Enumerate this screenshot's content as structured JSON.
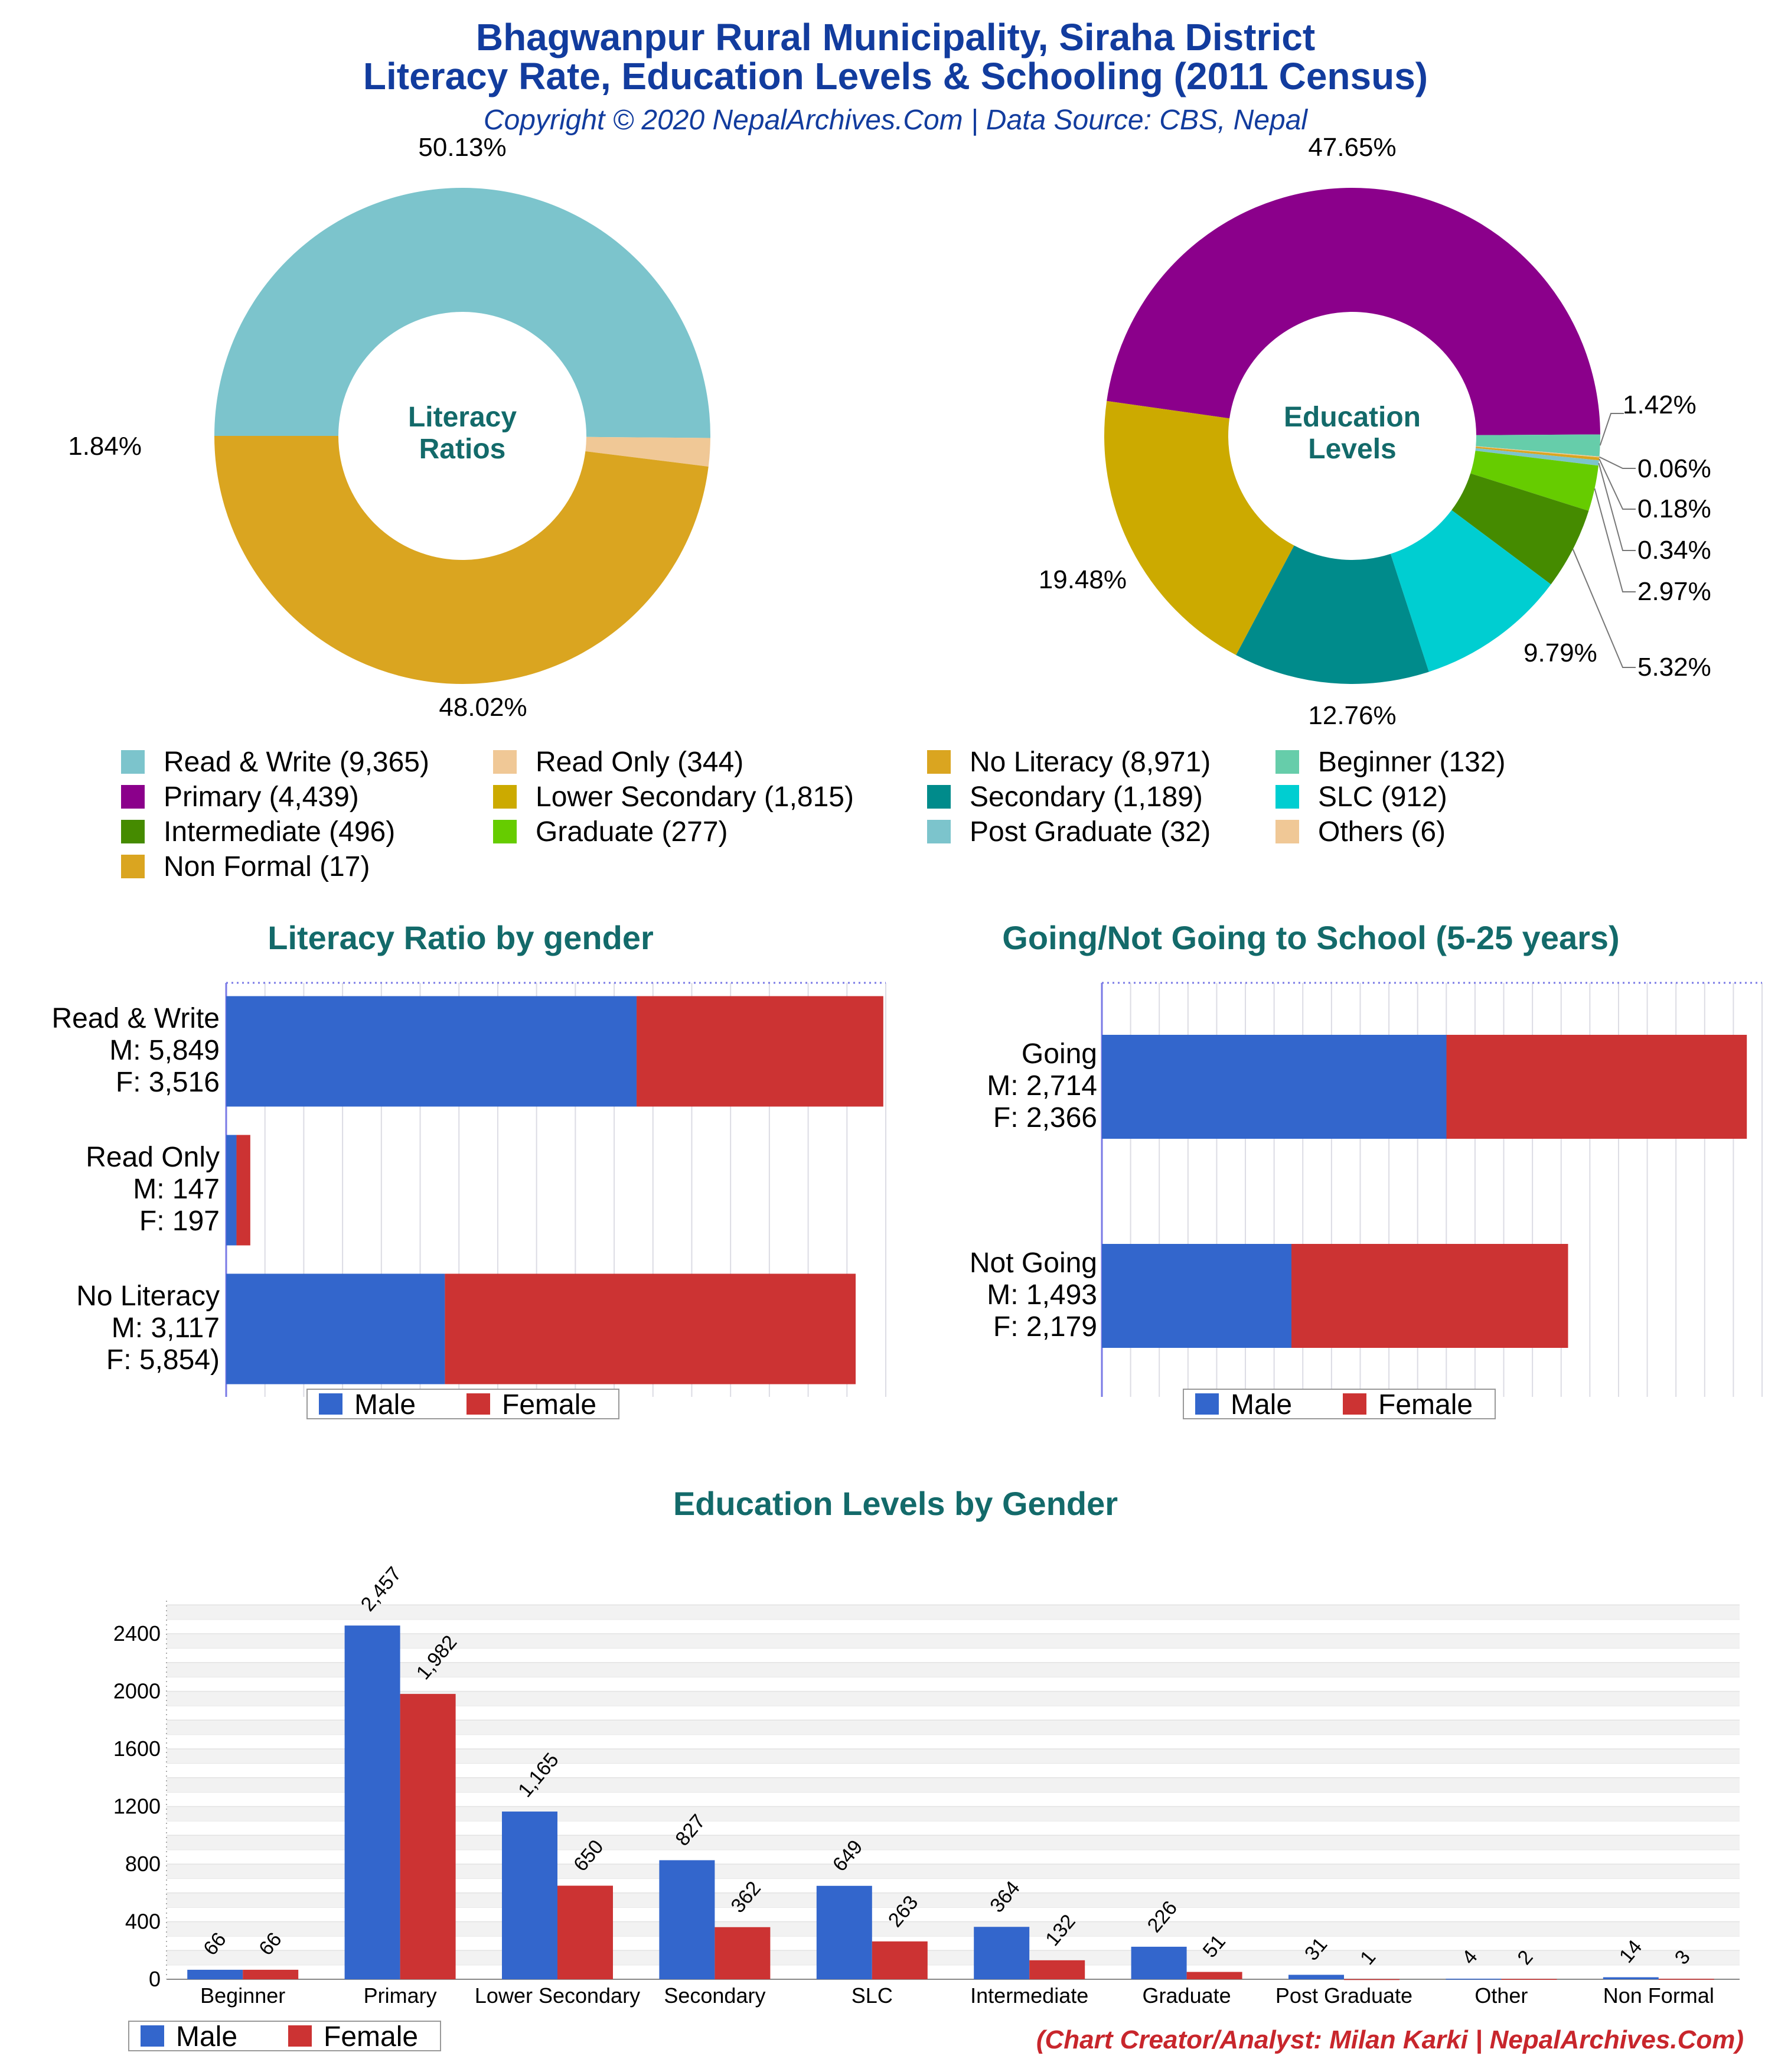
{
  "header": {
    "title_line1": "Bhagwanpur Rural Municipality, Siraha District",
    "title_line2": "Literacy Rate, Education Levels & Schooling (2011 Census)",
    "subtitle": "Copyright © 2020 NepalArchives.Com | Data Source: CBS, Nepal"
  },
  "colors": {
    "male": "#3366cc",
    "female": "#cc3333",
    "title": "#123c9e",
    "section": "#136a6a",
    "credit": "#c8262c"
  },
  "chart_data": [
    {
      "type": "pie",
      "center_label": [
        "Literacy",
        "Ratios"
      ],
      "slices": [
        {
          "label": "Read & Write",
          "value": 9365,
          "percent": "50.13%",
          "color": "#7cc4cc"
        },
        {
          "label": "Read Only",
          "value": 344,
          "percent": "1.84%",
          "color": "#f0c896"
        },
        {
          "label": "No Literacy",
          "value": 8971,
          "percent": "48.02%",
          "color": "#daa520"
        }
      ]
    },
    {
      "type": "pie",
      "center_label": [
        "Education",
        "Levels"
      ],
      "slices": [
        {
          "label": "Primary",
          "value": 4439,
          "percent": "47.65%",
          "color": "#8b008b"
        },
        {
          "label": "Beginner",
          "value": 132,
          "percent": "1.42%",
          "color": "#66cdaa"
        },
        {
          "label": "Others",
          "value": 6,
          "percent": "0.06%",
          "color": "#f0c896"
        },
        {
          "label": "Non Formal",
          "value": 17,
          "percent": "0.18%",
          "color": "#daa520"
        },
        {
          "label": "Post Graduate",
          "value": 32,
          "percent": "0.34%",
          "color": "#7cc4cc"
        },
        {
          "label": "Graduate",
          "value": 277,
          "percent": "2.97%",
          "color": "#66cc00"
        },
        {
          "label": "Intermediate",
          "value": 496,
          "percent": "5.32%",
          "color": "#458b00"
        },
        {
          "label": "SLC",
          "value": 912,
          "percent": "9.79%",
          "color": "#00ced1"
        },
        {
          "label": "Secondary",
          "value": 1189,
          "percent": "12.76%",
          "color": "#008b8b"
        },
        {
          "label": "Lower Secondary",
          "value": 1815,
          "percent": "19.48%",
          "color": "#ccaa00"
        }
      ]
    },
    {
      "type": "bar",
      "orientation": "horizontal-stacked",
      "title": "Literacy Ratio by gender",
      "categories": [
        {
          "name": "Read & Write",
          "line2": "M: 5,849",
          "line3": "F: 3,516"
        },
        {
          "name": "Read Only",
          "line2": "M: 147",
          "line3": "F: 197"
        },
        {
          "name": "No Literacy",
          "line2": "M: 3,117",
          "line3": "F: 5,854)"
        }
      ],
      "series": [
        {
          "name": "Male",
          "values": [
            5849,
            147,
            3117
          ]
        },
        {
          "name": "Female",
          "values": [
            3516,
            197,
            5854
          ]
        }
      ],
      "xlim": [
        0,
        9400
      ]
    },
    {
      "type": "bar",
      "orientation": "horizontal-stacked",
      "title": "Going/Not Going to School (5-25 years)",
      "categories": [
        {
          "name": "Going",
          "line2": "M: 2,714",
          "line3": "F: 2,366"
        },
        {
          "name": "Not Going",
          "line2": "M: 1,493",
          "line3": "F: 2,179"
        }
      ],
      "series": [
        {
          "name": "Male",
          "values": [
            2714,
            1493
          ]
        },
        {
          "name": "Female",
          "values": [
            2366,
            2179
          ]
        }
      ],
      "xlim": [
        0,
        5200
      ]
    },
    {
      "type": "bar",
      "title": "Education Levels by Gender",
      "categories": [
        "Beginner",
        "Primary",
        "Lower Secondary",
        "Secondary",
        "SLC",
        "Intermediate",
        "Graduate",
        "Post Graduate",
        "Other",
        "Non Formal"
      ],
      "series": [
        {
          "name": "Male",
          "values": [
            66,
            2457,
            1165,
            827,
            649,
            364,
            226,
            31,
            4,
            14
          ],
          "labels": [
            "66",
            "2,457",
            "1,165",
            "827",
            "649",
            "364",
            "226",
            "31",
            "4",
            "14"
          ]
        },
        {
          "name": "Female",
          "values": [
            66,
            1982,
            650,
            362,
            263,
            132,
            51,
            1,
            2,
            3
          ],
          "labels": [
            "66",
            "1,982",
            "650",
            "362",
            "263",
            "132",
            "51",
            "1",
            "2",
            "3"
          ]
        }
      ],
      "yticks": [
        "0",
        "400",
        "800",
        "1200",
        "1600",
        "2000",
        "2400"
      ],
      "ylim": [
        0,
        2600
      ]
    }
  ],
  "legend_top": [
    {
      "label": "Read & Write (9,365)",
      "color": "#7cc4cc"
    },
    {
      "label": "Read Only (344)",
      "color": "#f0c896"
    },
    {
      "label": "No Literacy (8,971)",
      "color": "#daa520"
    },
    {
      "label": "Beginner (132)",
      "color": "#66cdaa"
    },
    {
      "label": "Primary (4,439)",
      "color": "#8b008b"
    },
    {
      "label": "Lower Secondary (1,815)",
      "color": "#ccaa00"
    },
    {
      "label": "Secondary (1,189)",
      "color": "#008b8b"
    },
    {
      "label": "SLC (912)",
      "color": "#00ced1"
    },
    {
      "label": "Intermediate (496)",
      "color": "#458b00"
    },
    {
      "label": "Graduate (277)",
      "color": "#66cc00"
    },
    {
      "label": "Post Graduate (32)",
      "color": "#7cc4cc"
    },
    {
      "label": "Others (6)",
      "color": "#f0c896"
    },
    {
      "label": "Non Formal (17)",
      "color": "#daa520"
    }
  ],
  "legend_gender": {
    "male": "Male",
    "female": "Female"
  },
  "credit": "(Chart Creator/Analyst: Milan Karki | NepalArchives.Com)"
}
